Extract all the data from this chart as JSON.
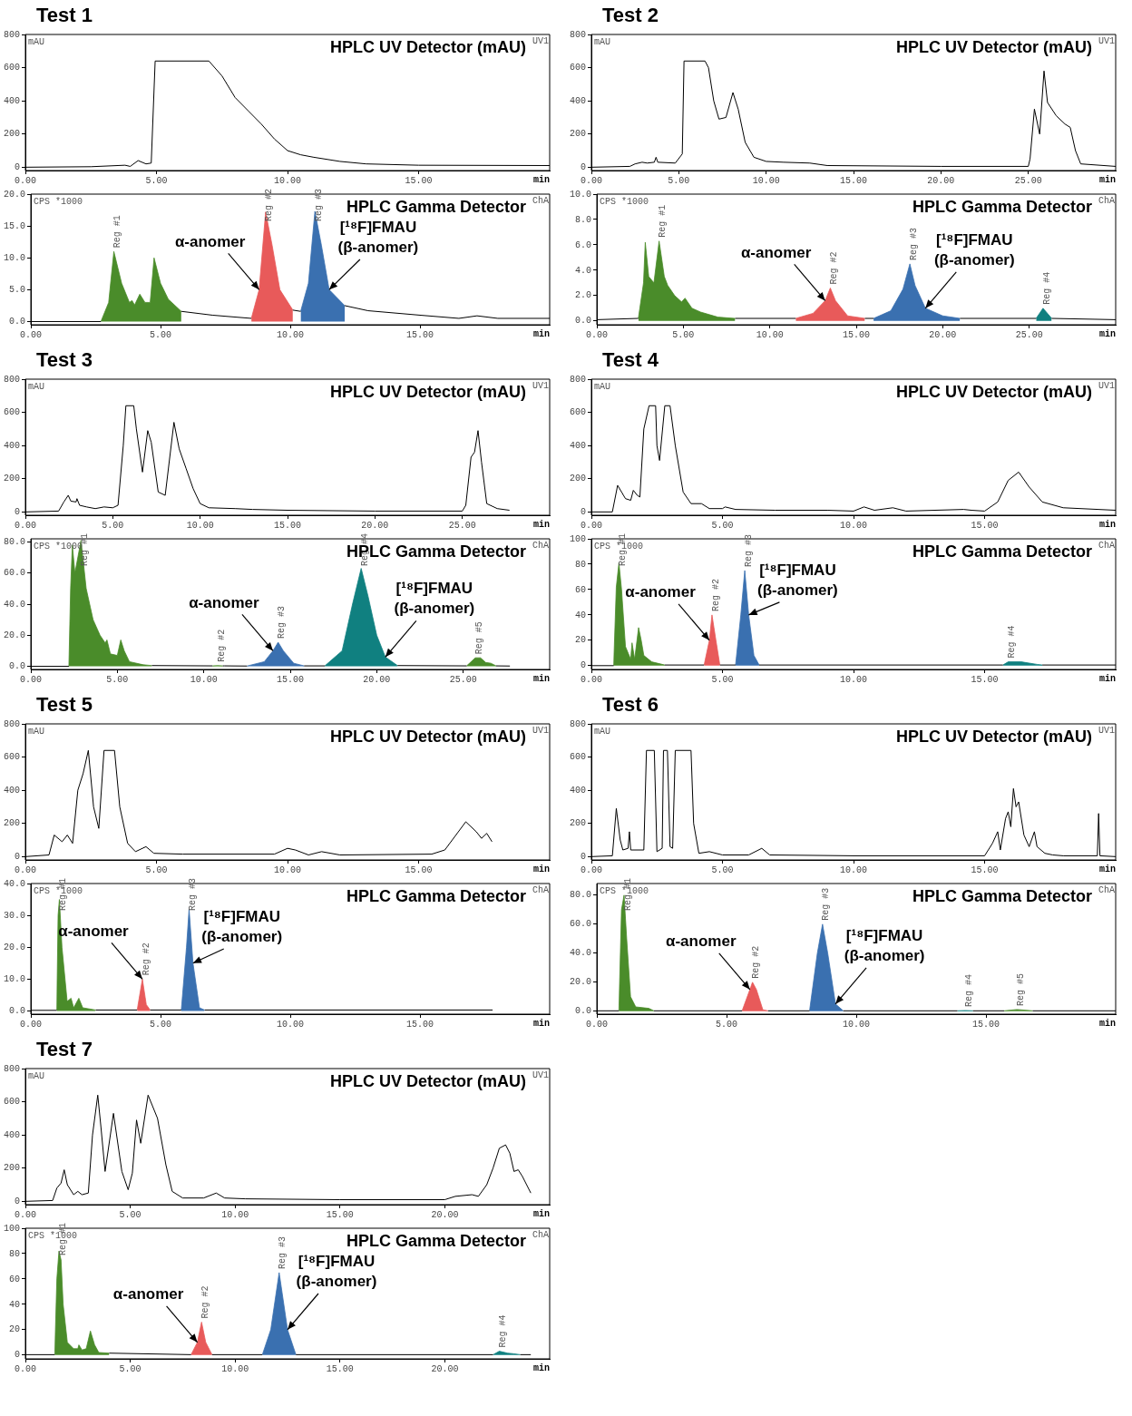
{
  "chart_data": [
    {
      "type": "line",
      "title": "Test 1",
      "subtitle": "HPLC UV Detector (mAU)",
      "ylabel": "mAU",
      "xlabel": "min",
      "annotations": [
        "UV1"
      ],
      "xlim": [
        0,
        20
      ],
      "ylim": [
        -20,
        800
      ],
      "xticks": [
        {
          "value": 0,
          "label": "0.00"
        },
        {
          "value": 5,
          "label": "5.00"
        },
        {
          "value": 10,
          "label": "10.00"
        },
        {
          "value": 15,
          "label": "15.00"
        }
      ],
      "yticks": [
        0,
        200,
        400,
        600,
        800
      ],
      "series": [
        {
          "color": "#000000",
          "x": [
            0,
            2.5,
            3.8,
            4.0,
            4.3,
            4.6,
            4.8,
            4.95,
            7.0,
            7.5,
            8.0,
            8.5,
            9.0,
            9.5,
            10,
            10.5,
            11,
            12,
            13,
            15,
            20
          ],
          "values": [
            0,
            3,
            12,
            5,
            40,
            20,
            25,
            640,
            640,
            550,
            420,
            340,
            260,
            170,
            100,
            75,
            60,
            35,
            20,
            12,
            10
          ]
        }
      ]
    },
    {
      "type": "line",
      "subtitle": "HPLC Gamma Detector",
      "ylabel": "CPS *1000",
      "xlabel": "min",
      "annotations": [
        "ChA",
        {
          "text": "α-anomer",
          "x": 8.8,
          "y": 5
        },
        {
          "text": "[¹⁸F]FMAU (β-anomer)",
          "x": 11.5,
          "y": 5
        }
      ],
      "xlim": [
        0,
        20
      ],
      "ylim": [
        -0.5,
        20
      ],
      "xticks": [
        {
          "value": 0,
          "label": "0.00"
        },
        {
          "value": 5,
          "label": "5.00"
        },
        {
          "value": 10,
          "label": "10.00"
        },
        {
          "value": 15,
          "label": "15.00"
        }
      ],
      "yticks": [
        {
          "value": 0,
          "label": "0.0"
        },
        {
          "value": 5,
          "label": "5.0"
        },
        {
          "value": 10,
          "label": "10.0"
        },
        {
          "value": 15,
          "label": "15.0"
        },
        {
          "value": 20,
          "label": "20.0"
        }
      ],
      "series": [
        {
          "color": "#000000",
          "x": [
            0,
            2.7,
            2.8,
            5.8,
            7,
            8.5,
            8.6,
            10.1,
            10.4,
            10.5,
            12.1,
            13,
            15,
            16.5,
            17.2,
            18,
            20
          ],
          "values": [
            0,
            0,
            null,
            1.6,
            1.0,
            0.5,
            null,
            1.8,
            1.6,
            null,
            2.5,
            1.7,
            1.0,
            0.5,
            0.9,
            0.5,
            0.5
          ]
        },
        {
          "type": "area",
          "name": "Reg #1",
          "color": "#4a8c2a",
          "x": [
            2.7,
            3.0,
            3.2,
            3.5,
            3.8,
            3.9,
            4.0,
            4.2,
            4.4,
            4.6,
            4.75,
            5.0,
            5.3,
            5.8
          ],
          "values": [
            0,
            3,
            11,
            6,
            3,
            3.3,
            2.6,
            4.3,
            3,
            3,
            10,
            6,
            3.5,
            1.6
          ]
        },
        {
          "type": "area",
          "name": "Reg #2",
          "color": "#e85a5a",
          "x": [
            8.5,
            8.8,
            9.05,
            9.3,
            9.6,
            10.1
          ],
          "values": [
            0.5,
            5,
            17.2,
            12,
            5,
            1.8
          ]
        },
        {
          "type": "area",
          "name": "Reg #3",
          "color": "#3a70b0",
          "x": [
            10.4,
            10.7,
            10.95,
            11.2,
            11.5,
            12.1
          ],
          "values": [
            1.6,
            6,
            17.3,
            12,
            5,
            2.5
          ]
        }
      ]
    },
    {
      "type": "line",
      "title": "Test 2",
      "subtitle": "HPLC UV Detector (mAU)",
      "ylabel": "mAU",
      "xlabel": "min",
      "annotations": [
        "UV1"
      ],
      "xlim": [
        0,
        30
      ],
      "ylim": [
        -20,
        800
      ],
      "xticks": [
        {
          "value": 0,
          "label": "0.00"
        },
        {
          "value": 5,
          "label": "5.00"
        },
        {
          "value": 10,
          "label": "10.00"
        },
        {
          "value": 15,
          "label": "15.00"
        },
        {
          "value": 20,
          "label": "20.00"
        },
        {
          "value": 25,
          "label": "25.00"
        }
      ],
      "yticks": [
        0,
        200,
        400,
        600,
        800
      ],
      "series": [
        {
          "color": "#000000",
          "x": [
            0,
            2.2,
            2.5,
            2.9,
            3.2,
            3.6,
            3.7,
            3.8,
            4.8,
            5.2,
            5.3,
            6.5,
            6.7,
            7.0,
            7.3,
            7.7,
            8.1,
            8.4,
            8.8,
            9.3,
            10,
            11,
            12.5,
            13.5,
            20,
            25,
            25.1,
            25.35,
            25.65,
            25.9,
            26.1,
            26.6,
            27.1,
            27.4,
            27.7,
            28,
            30
          ],
          "values": [
            0,
            5,
            20,
            30,
            25,
            30,
            60,
            30,
            25,
            80,
            640,
            640,
            600,
            400,
            290,
            300,
            450,
            350,
            150,
            60,
            35,
            30,
            25,
            10,
            5,
            5,
            50,
            350,
            200,
            580,
            390,
            310,
            260,
            240,
            100,
            20,
            5
          ]
        }
      ]
    },
    {
      "type": "line",
      "subtitle": "HPLC Gamma Detector",
      "ylabel": "CPS *1000",
      "xlabel": "min",
      "annotations": [
        "ChA",
        {
          "text": "α-anomer",
          "x": 13.2,
          "y": 1.6
        },
        {
          "text": "[¹⁸F]FMAU (β-anomer)",
          "x": 19,
          "y": 1.0
        }
      ],
      "xlim": [
        0,
        30
      ],
      "ylim": [
        -0.3,
        10
      ],
      "xticks": [
        {
          "value": 0,
          "label": "0.00"
        },
        {
          "value": 5,
          "label": "5.00"
        },
        {
          "value": 10,
          "label": "10.00"
        },
        {
          "value": 15,
          "label": "15.00"
        },
        {
          "value": 20,
          "label": "20.00"
        },
        {
          "value": 25,
          "label": "25.00"
        }
      ],
      "yticks": [
        {
          "value": 0,
          "label": "0.0"
        },
        {
          "value": 2,
          "label": "2.0"
        },
        {
          "value": 4,
          "label": "4.0"
        },
        {
          "value": 6,
          "label": "6.0"
        },
        {
          "value": 8,
          "label": "8.0"
        },
        {
          "value": 10,
          "label": "10.0"
        }
      ],
      "series": [
        {
          "color": "#000000",
          "x": [
            0,
            2.4,
            2.5,
            8,
            11.5,
            11.6,
            15.5,
            16,
            16.1,
            21,
            25.4,
            25.5,
            26.3,
            30
          ],
          "values": [
            0.1,
            0.2,
            null,
            0.2,
            0.2,
            null,
            0.2,
            0.2,
            null,
            0.2,
            0.2,
            null,
            0.2,
            0.1
          ]
        },
        {
          "type": "area",
          "name": "Reg #1",
          "color": "#4a8c2a",
          "x": [
            2.4,
            2.7,
            2.8,
            3.0,
            3.3,
            3.6,
            3.9,
            4.1,
            4.5,
            4.9,
            5.1,
            5.5,
            6,
            7,
            8
          ],
          "values": [
            0.2,
            3,
            6.2,
            3.5,
            3,
            6.3,
            3.5,
            2.8,
            2,
            1.5,
            1.8,
            1.0,
            0.7,
            0.3,
            0.2
          ]
        },
        {
          "type": "area",
          "name": "Reg #2",
          "color": "#e85a5a",
          "x": [
            11.5,
            12.5,
            13.2,
            13.5,
            13.8,
            14.5,
            15.5
          ],
          "values": [
            0.2,
            0.6,
            1.6,
            2.6,
            1.6,
            0.4,
            0.2
          ]
        },
        {
          "type": "area",
          "name": "Reg #3",
          "color": "#3a70b0",
          "x": [
            16,
            17,
            17.7,
            18.1,
            18.4,
            19,
            20,
            21
          ],
          "values": [
            0.2,
            0.8,
            2.5,
            4.5,
            2.8,
            1.0,
            0.4,
            0.2
          ]
        },
        {
          "type": "area",
          "name": "Reg #4",
          "color": "#108080",
          "x": [
            25.4,
            25.8,
            26.3
          ],
          "values": [
            0.2,
            1.0,
            0.2
          ]
        }
      ]
    },
    {
      "type": "line",
      "title": "Test 3",
      "subtitle": "HPLC UV Detector (mAU)",
      "ylabel": "mAU",
      "xlabel": "min",
      "annotations": [
        "UV1"
      ],
      "xlim": [
        0,
        30
      ],
      "ylim": [
        -20,
        800
      ],
      "xticks": [
        {
          "value": 0,
          "label": "0.00"
        },
        {
          "value": 5,
          "label": "5.00"
        },
        {
          "value": 10,
          "label": "10.00"
        },
        {
          "value": 15,
          "label": "15.00"
        },
        {
          "value": 20,
          "label": "20.00"
        },
        {
          "value": 25,
          "label": "25.00"
        }
      ],
      "yticks": [
        0,
        200,
        400,
        600,
        800
      ],
      "series": [
        {
          "color": "#000000",
          "x": [
            0,
            1.9,
            2.2,
            2.45,
            2.6,
            2.9,
            2.95,
            3.1,
            3.5,
            4,
            4.5,
            5,
            5.3,
            5.6,
            5.75,
            6.2,
            6.35,
            6.7,
            7.0,
            7.2,
            7.6,
            8.0,
            8.5,
            8.8,
            9.2,
            9.6,
            10,
            10.5,
            12,
            13,
            15,
            20,
            25,
            25.2,
            25.5,
            25.7,
            25.9,
            26.1,
            26.4,
            27,
            27.7
          ],
          "values": [
            0,
            5,
            60,
            100,
            65,
            60,
            80,
            40,
            30,
            20,
            30,
            25,
            40,
            400,
            640,
            640,
            500,
            240,
            490,
            420,
            120,
            100,
            540,
            380,
            260,
            140,
            50,
            25,
            20,
            15,
            10,
            5,
            5,
            40,
            330,
            360,
            490,
            300,
            50,
            20,
            10
          ]
        }
      ]
    },
    {
      "type": "line",
      "subtitle": "HPLC Gamma Detector",
      "ylabel": "CPS *1000",
      "xlabel": "min",
      "annotations": [
        "ChA",
        {
          "text": "α-anomer",
          "x": 14.0,
          "y": 10
        },
        {
          "text": "[¹⁸F]FMAU (β-anomer)",
          "x": 20.5,
          "y": 6
        }
      ],
      "xlim": [
        0,
        30
      ],
      "ylim": [
        -2,
        82
      ],
      "xticks": [
        {
          "value": 0,
          "label": "0.00"
        },
        {
          "value": 5,
          "label": "5.00"
        },
        {
          "value": 10,
          "label": "10.00"
        },
        {
          "value": 15,
          "label": "15.00"
        },
        {
          "value": 20,
          "label": "20.00"
        },
        {
          "value": 25,
          "label": "25.00"
        }
      ],
      "yticks": [
        {
          "value": 0,
          "label": "0.0"
        },
        {
          "value": 20,
          "label": "20.0"
        },
        {
          "value": 40,
          "label": "40.0"
        },
        {
          "value": 60,
          "label": "60.0"
        },
        {
          "value": 80,
          "label": "80.0"
        }
      ],
      "series": [
        {
          "color": "#000000",
          "x": [
            0,
            2.2,
            2.3,
            7,
            10.5,
            10.6,
            11.1,
            11.2,
            12.5,
            12.6,
            15.8,
            17,
            17.1,
            21.2,
            25.2,
            25.3,
            26.9,
            27.7
          ],
          "values": [
            0,
            0,
            null,
            0.5,
            0.3,
            null,
            0.3,
            0.3,
            0.2,
            null,
            0.3,
            0.3,
            null,
            0.5,
            0.3,
            null,
            0.3,
            0.2
          ]
        },
        {
          "type": "area",
          "name": "Reg #1",
          "color": "#4a8c2a",
          "x": [
            2.2,
            2.3,
            2.4,
            2.55,
            2.9,
            3.2,
            3.6,
            4,
            4.3,
            4.4,
            4.6,
            5.0,
            5.2,
            5.4,
            5.7,
            6.5,
            7.0
          ],
          "values": [
            0,
            50,
            78,
            60,
            81,
            50,
            30,
            20,
            15,
            17,
            8,
            7,
            17,
            10,
            3,
            1,
            0.5
          ]
        },
        {
          "type": "area",
          "name": "Reg #2",
          "color": "#4a8c2a",
          "x": [
            10.5,
            10.8,
            11.1
          ],
          "values": [
            0.3,
            0.5,
            0.3
          ]
        },
        {
          "type": "area",
          "name": "Reg #3",
          "color": "#3a70b0",
          "x": [
            12.5,
            13.5,
            14.0,
            14.3,
            14.6,
            15.2,
            15.8
          ],
          "values": [
            0.2,
            3,
            10,
            15.5,
            10,
            2,
            0.3
          ]
        },
        {
          "type": "area",
          "name": "Reg #4",
          "color": "#108080",
          "x": [
            17,
            18,
            18.6,
            19.1,
            19.5,
            20,
            20.5,
            21.2
          ],
          "values": [
            0.3,
            10,
            40,
            63,
            45,
            20,
            6,
            0.5
          ]
        },
        {
          "type": "area",
          "name": "Reg #5",
          "color": "#4a8c2a",
          "x": [
            25.2,
            25.7,
            26.0,
            26.3,
            26.6,
            26.9
          ],
          "values": [
            0.3,
            5.5,
            5.5,
            2.5,
            2,
            0.3
          ]
        }
      ]
    },
    {
      "type": "line",
      "title": "Test 4",
      "subtitle": "HPLC UV Detector (mAU)",
      "ylabel": "mAU",
      "xlabel": "min",
      "annotations": [
        "UV1"
      ],
      "xlim": [
        0,
        20
      ],
      "ylim": [
        -20,
        800
      ],
      "xticks": [
        {
          "value": 0,
          "label": "0.00"
        },
        {
          "value": 5,
          "label": "5.00"
        },
        {
          "value": 10,
          "label": "10.00"
        },
        {
          "value": 15,
          "label": "15.00"
        }
      ],
      "yticks": [
        0,
        200,
        400,
        600,
        800
      ],
      "series": [
        {
          "color": "#000000",
          "x": [
            0,
            0.8,
            1.0,
            1.3,
            1.5,
            1.6,
            1.75,
            1.85,
            2.0,
            2.2,
            2.45,
            2.5,
            2.6,
            2.8,
            3.0,
            3.2,
            3.5,
            3.8,
            4.2,
            4.5,
            5.0,
            5.1,
            5.5,
            7,
            9,
            10.0,
            10.4,
            10.8,
            11.5,
            12,
            14.2,
            14.5,
            15.0,
            15.5,
            15.9,
            16.3,
            16.7,
            17.2,
            18,
            20
          ],
          "values": [
            0,
            0,
            160,
            80,
            70,
            130,
            100,
            90,
            500,
            640,
            640,
            400,
            310,
            640,
            640,
            400,
            120,
            50,
            50,
            20,
            20,
            30,
            15,
            10,
            10,
            5,
            30,
            10,
            25,
            5,
            15,
            10,
            5,
            60,
            190,
            240,
            150,
            60,
            25,
            10
          ]
        }
      ]
    },
    {
      "type": "line",
      "subtitle": "HPLC Gamma Detector",
      "ylabel": "CPS *1000",
      "xlabel": "min",
      "annotations": [
        "ChA",
        {
          "text": "α-anomer",
          "x": 4.5,
          "y": 20
        },
        {
          "text": "[¹⁸F]FMAU (β-anomer)",
          "x": 6.0,
          "y": 40
        }
      ],
      "xlim": [
        0,
        20
      ],
      "ylim": [
        -3,
        100
      ],
      "xticks": [
        {
          "value": 0,
          "label": "0.00"
        },
        {
          "value": 5,
          "label": "5.00"
        },
        {
          "value": 10,
          "label": "10.00"
        },
        {
          "value": 15,
          "label": "15.00"
        }
      ],
      "yticks": [
        0,
        20,
        40,
        60,
        80,
        100
      ],
      "series": [
        {
          "color": "#000000",
          "x": [
            0,
            0.85,
            0.9,
            2.8,
            4.3,
            4.4,
            4.9,
            5.5,
            5.6,
            6.4,
            15.7,
            15.8,
            17.2,
            20
          ],
          "values": [
            0,
            0,
            null,
            0.5,
            0.5,
            null,
            0.5,
            0.5,
            null,
            0.5,
            0.5,
            null,
            0.5,
            0.5
          ]
        },
        {
          "type": "area",
          "name": "Reg #1",
          "color": "#4a8c2a",
          "x": [
            0.85,
            0.95,
            1.05,
            1.15,
            1.3,
            1.5,
            1.55,
            1.65,
            1.8,
            1.9,
            2.0,
            2.3,
            2.8
          ],
          "values": [
            0,
            62,
            81,
            60,
            15,
            5,
            18,
            5,
            30,
            20,
            8,
            3,
            0.5
          ]
        },
        {
          "type": "area",
          "name": "Reg #2",
          "color": "#e85a5a",
          "x": [
            4.3,
            4.5,
            4.6,
            4.75,
            4.9
          ],
          "values": [
            0.5,
            20,
            40,
            20,
            0.5
          ]
        },
        {
          "type": "area",
          "name": "Reg #3",
          "color": "#3a70b0",
          "x": [
            5.5,
            5.7,
            5.85,
            6.0,
            6.2,
            6.4
          ],
          "values": [
            0.5,
            40,
            75,
            40,
            8,
            0.5
          ]
        },
        {
          "type": "area",
          "name": "Reg #4",
          "color": "#108080",
          "x": [
            15.7,
            15.9,
            16.4,
            17.0,
            17.2
          ],
          "values": [
            0.5,
            3,
            3,
            1,
            0.5
          ]
        }
      ]
    },
    {
      "type": "line",
      "title": "Test 5",
      "subtitle": "HPLC UV Detector (mAU)",
      "ylabel": "mAU",
      "xlabel": "min",
      "annotations": [
        "UV1"
      ],
      "xlim": [
        0,
        20
      ],
      "ylim": [
        -20,
        800
      ],
      "xticks": [
        {
          "value": 0,
          "label": "0.00"
        },
        {
          "value": 5,
          "label": "5.00"
        },
        {
          "value": 10,
          "label": "10.00"
        },
        {
          "value": 15,
          "label": "15.00"
        }
      ],
      "yticks": [
        0,
        200,
        400,
        600,
        800
      ],
      "series": [
        {
          "color": "#000000",
          "x": [
            0,
            0.9,
            1.1,
            1.4,
            1.6,
            1.8,
            2.0,
            2.2,
            2.4,
            2.6,
            2.8,
            3.0,
            3.4,
            3.6,
            3.9,
            4.2,
            4.6,
            4.9,
            6,
            9.5,
            10.0,
            10.3,
            10.8,
            11.3,
            12,
            15.5,
            16.0,
            16.8,
            17.2,
            17.4,
            17.6,
            17.8
          ],
          "values": [
            0,
            10,
            130,
            90,
            130,
            80,
            400,
            500,
            640,
            300,
            170,
            640,
            640,
            300,
            80,
            30,
            60,
            20,
            15,
            15,
            50,
            40,
            10,
            30,
            10,
            15,
            40,
            210,
            150,
            110,
            140,
            90
          ]
        }
      ]
    },
    {
      "type": "line",
      "subtitle": "HPLC Gamma Detector",
      "ylabel": "CPS *1000",
      "xlabel": "min",
      "annotations": [
        "ChA",
        {
          "text": "α-anomer",
          "x": 4.3,
          "y": 10
        },
        {
          "text": "[¹⁸F]FMAU (β-anomer)",
          "x": 6.25,
          "y": 15
        }
      ],
      "xlim": [
        0,
        20
      ],
      "ylim": [
        -1,
        40
      ],
      "xticks": [
        {
          "value": 0,
          "label": "0.00"
        },
        {
          "value": 5,
          "label": "5.00"
        },
        {
          "value": 10,
          "label": "10.00"
        },
        {
          "value": 15,
          "label": "15.00"
        }
      ],
      "yticks": [
        {
          "value": 0,
          "label": "0.0"
        },
        {
          "value": 10,
          "label": "10.0"
        },
        {
          "value": 20,
          "label": "20.0"
        },
        {
          "value": 30,
          "label": "30.0"
        },
        {
          "value": 40,
          "label": "40.0"
        }
      ],
      "series": [
        {
          "color": "#000000",
          "x": [
            0,
            1.0,
            1.05,
            2.5,
            4.1,
            4.15,
            4.6,
            5.8,
            5.85,
            6.7,
            17.8
          ],
          "values": [
            0.2,
            0.2,
            null,
            0.3,
            0.3,
            null,
            0.3,
            0.3,
            null,
            0.3,
            0.3
          ]
        },
        {
          "type": "area",
          "name": "Reg #1",
          "color": "#4a8c2a",
          "x": [
            1.0,
            1.05,
            1.1,
            1.2,
            1.4,
            1.55,
            1.65,
            1.85,
            2.0,
            2.5
          ],
          "values": [
            0.2,
            30,
            35,
            20,
            3,
            4,
            1,
            4,
            1,
            0.3
          ]
        },
        {
          "type": "area",
          "name": "Reg #2",
          "color": "#e85a5a",
          "x": [
            4.1,
            4.3,
            4.45,
            4.6
          ],
          "values": [
            0.3,
            10,
            2,
            0.3
          ]
        },
        {
          "type": "area",
          "name": "Reg #3",
          "color": "#3a70b0",
          "x": [
            5.8,
            6.0,
            6.1,
            6.25,
            6.5,
            6.7
          ],
          "values": [
            0.3,
            20,
            32,
            15,
            1,
            0.3
          ]
        }
      ]
    },
    {
      "type": "line",
      "title": "Test 6",
      "subtitle": "HPLC UV Detector (mAU)",
      "ylabel": "mAU",
      "xlabel": "min",
      "annotations": [
        "UV1"
      ],
      "xlim": [
        0,
        20
      ],
      "ylim": [
        -20,
        800
      ],
      "xticks": [
        {
          "value": 0,
          "label": "0.00"
        },
        {
          "value": 5,
          "label": "5.00"
        },
        {
          "value": 10,
          "label": "10.00"
        },
        {
          "value": 15,
          "label": "15.00"
        }
      ],
      "yticks": [
        0,
        200,
        400,
        600,
        800
      ],
      "series": [
        {
          "color": "#000000",
          "x": [
            0,
            0.8,
            0.95,
            1.1,
            1.2,
            1.4,
            1.45,
            1.5,
            2.0,
            2.1,
            2.4,
            2.5,
            2.7,
            2.75,
            2.9,
            3.0,
            3.1,
            3.2,
            3.8,
            3.9,
            4.1,
            4.5,
            5,
            6,
            6.5,
            6.8,
            10,
            15,
            15.3,
            15.5,
            15.6,
            15.8,
            15.9,
            16.0,
            16.1,
            16.2,
            16.3,
            16.5,
            16.7,
            16.9,
            17.0,
            17.3,
            17.6,
            18,
            19.3,
            19.35,
            19.4,
            20
          ],
          "values": [
            0,
            5,
            290,
            100,
            40,
            50,
            150,
            40,
            40,
            640,
            640,
            30,
            50,
            640,
            640,
            60,
            50,
            640,
            640,
            200,
            20,
            30,
            10,
            10,
            50,
            10,
            5,
            5,
            80,
            150,
            40,
            230,
            270,
            180,
            410,
            300,
            330,
            130,
            60,
            150,
            60,
            20,
            10,
            5,
            5,
            260,
            5,
            0
          ]
        }
      ]
    },
    {
      "type": "line",
      "subtitle": "HPLC Gamma Detector",
      "ylabel": "CPS *1000",
      "xlabel": "min",
      "annotations": [
        "ChA",
        {
          "text": "α-anomer",
          "x": 5.9,
          "y": 15
        },
        {
          "text": "[¹⁸F]FMAU (β-anomer)",
          "x": 9.2,
          "y": 5
        }
      ],
      "xlim": [
        0,
        20
      ],
      "ylim": [
        -2,
        88
      ],
      "xticks": [
        {
          "value": 0,
          "label": "0.00"
        },
        {
          "value": 5,
          "label": "5.00"
        },
        {
          "value": 10,
          "label": "10.00"
        },
        {
          "value": 15,
          "label": "15.00"
        }
      ],
      "yticks": [
        {
          "value": 0,
          "label": "0.0"
        },
        {
          "value": 20,
          "label": "20.0"
        },
        {
          "value": 40,
          "label": "40.0"
        },
        {
          "value": 60,
          "label": "60.0"
        },
        {
          "value": 80,
          "label": "80.0"
        }
      ],
      "series": [
        {
          "color": "#000000",
          "x": [
            0,
            0.85,
            0.9,
            2.2,
            5.6,
            5.65,
            6.6,
            8.2,
            8.25,
            9.5,
            13.9,
            14.0,
            14.5,
            15.7,
            15.8,
            16.8,
            20
          ],
          "values": [
            0.3,
            0.3,
            null,
            0.3,
            0.3,
            null,
            0.3,
            0.3,
            null,
            0.3,
            0.3,
            null,
            0.3,
            0.3,
            null,
            0.3,
            0.3
          ]
        },
        {
          "type": "area",
          "name": "Reg #1",
          "color": "#4a8c2a",
          "x": [
            0.85,
            0.95,
            1.05,
            1.15,
            1.3,
            1.5,
            2.0,
            2.2
          ],
          "values": [
            0.3,
            70,
            80,
            50,
            10,
            3,
            2,
            0.3
          ]
        },
        {
          "type": "area",
          "name": "Reg #2",
          "color": "#e85a5a",
          "x": [
            5.6,
            5.9,
            6.0,
            6.15,
            6.4,
            6.6
          ],
          "values": [
            0.3,
            15,
            20,
            15,
            1,
            0.3
          ]
        },
        {
          "type": "area",
          "name": "Reg #3",
          "color": "#3a70b0",
          "x": [
            8.2,
            8.5,
            8.7,
            8.9,
            9.2,
            9.5
          ],
          "values": [
            0.3,
            40,
            60,
            40,
            5,
            0.3
          ]
        },
        {
          "type": "area",
          "name": "Reg #4",
          "color": "#108080",
          "x": [
            13.9,
            14.2,
            14.5
          ],
          "values": [
            0.3,
            0.5,
            0.3
          ]
        },
        {
          "type": "area",
          "name": "Reg #5",
          "color": "#4a8c2a",
          "x": [
            15.7,
            16.2,
            16.8
          ],
          "values": [
            0.3,
            1.2,
            0.3
          ]
        }
      ]
    },
    {
      "type": "line",
      "title": "Test 7",
      "subtitle": "HPLC UV Detector (mAU)",
      "ylabel": "mAU",
      "xlabel": "min",
      "annotations": [
        "UV1"
      ],
      "xlim": [
        0,
        25
      ],
      "ylim": [
        -20,
        800
      ],
      "xticks": [
        {
          "value": 0,
          "label": "0.00"
        },
        {
          "value": 5,
          "label": "5.00"
        },
        {
          "value": 10,
          "label": "10.00"
        },
        {
          "value": 15,
          "label": "15.00"
        },
        {
          "value": 20,
          "label": "20.00"
        }
      ],
      "yticks": [
        0,
        200,
        400,
        600,
        800
      ],
      "series": [
        {
          "color": "#000000",
          "x": [
            0,
            1.3,
            1.5,
            1.7,
            1.85,
            2.0,
            2.3,
            2.5,
            2.7,
            3.0,
            3.2,
            3.45,
            3.6,
            3.8,
            4.2,
            4.6,
            4.9,
            5.1,
            5.3,
            5.5,
            5.85,
            6.3,
            6.7,
            7.0,
            7.5,
            8.5,
            9.1,
            9.5,
            10.5,
            15,
            20,
            20.5,
            21.3,
            21.6,
            22.0,
            22.3,
            22.6,
            22.9,
            23.1,
            23.3,
            23.5,
            23.7,
            24.1
          ],
          "values": [
            0,
            5,
            80,
            110,
            190,
            100,
            40,
            60,
            40,
            50,
            400,
            640,
            450,
            180,
            530,
            180,
            70,
            170,
            490,
            350,
            640,
            500,
            220,
            60,
            20,
            20,
            50,
            20,
            15,
            10,
            10,
            30,
            40,
            30,
            100,
            200,
            320,
            340,
            290,
            180,
            190,
            150,
            50
          ]
        }
      ]
    },
    {
      "type": "line",
      "subtitle": "HPLC Gamma Detector",
      "ylabel": "CPS *1000",
      "xlabel": "min",
      "annotations": [
        "ChA",
        {
          "text": "α-anomer",
          "x": 8.2,
          "y": 10
        },
        {
          "text": "[¹⁸F]FMAU (β-anomer)",
          "x": 12.5,
          "y": 20
        }
      ],
      "xlim": [
        0,
        25
      ],
      "ylim": [
        -3,
        100
      ],
      "xticks": [
        {
          "value": 0,
          "label": "0.00"
        },
        {
          "value": 5,
          "label": "5.00"
        },
        {
          "value": 10,
          "label": "10.00"
        },
        {
          "value": 15,
          "label": "15.00"
        },
        {
          "value": 20,
          "label": "20.00"
        }
      ],
      "yticks": [
        0,
        20,
        40,
        60,
        80,
        100
      ],
      "series": [
        {
          "color": "#000000",
          "x": [
            0,
            1.4,
            1.45,
            4.0,
            7.9,
            7.95,
            8.9,
            11.3,
            11.35,
            12.9,
            22.3,
            22.35,
            23.6,
            24.1
          ],
          "values": [
            0.3,
            0.3,
            null,
            1.5,
            0.3,
            null,
            0.3,
            0.3,
            null,
            0.3,
            0.3,
            null,
            0.3,
            0.3
          ]
        },
        {
          "type": "area",
          "name": "Reg #1",
          "color": "#4a8c2a",
          "x": [
            1.4,
            1.5,
            1.6,
            1.7,
            1.8,
            2.0,
            2.3,
            2.5,
            2.55,
            2.7,
            2.9,
            3.1,
            3.3,
            3.5,
            4.0
          ],
          "values": [
            0.3,
            60,
            82,
            75,
            40,
            10,
            5,
            5,
            8,
            4,
            5,
            19,
            8,
            2,
            1.5
          ]
        },
        {
          "type": "area",
          "name": "Reg #2",
          "color": "#e85a5a",
          "x": [
            7.9,
            8.2,
            8.4,
            8.6,
            8.9
          ],
          "values": [
            0.3,
            10,
            26,
            10,
            0.3
          ]
        },
        {
          "type": "area",
          "name": "Reg #3",
          "color": "#3a70b0",
          "x": [
            11.3,
            11.7,
            12.1,
            12.5,
            12.9
          ],
          "values": [
            0.3,
            20,
            65,
            20,
            0.3
          ]
        },
        {
          "type": "area",
          "name": "Reg #4",
          "color": "#108080",
          "x": [
            22.3,
            22.6,
            23,
            23.3,
            23.6
          ],
          "values": [
            0.3,
            3,
            1.5,
            1,
            0.3
          ]
        }
      ]
    }
  ]
}
